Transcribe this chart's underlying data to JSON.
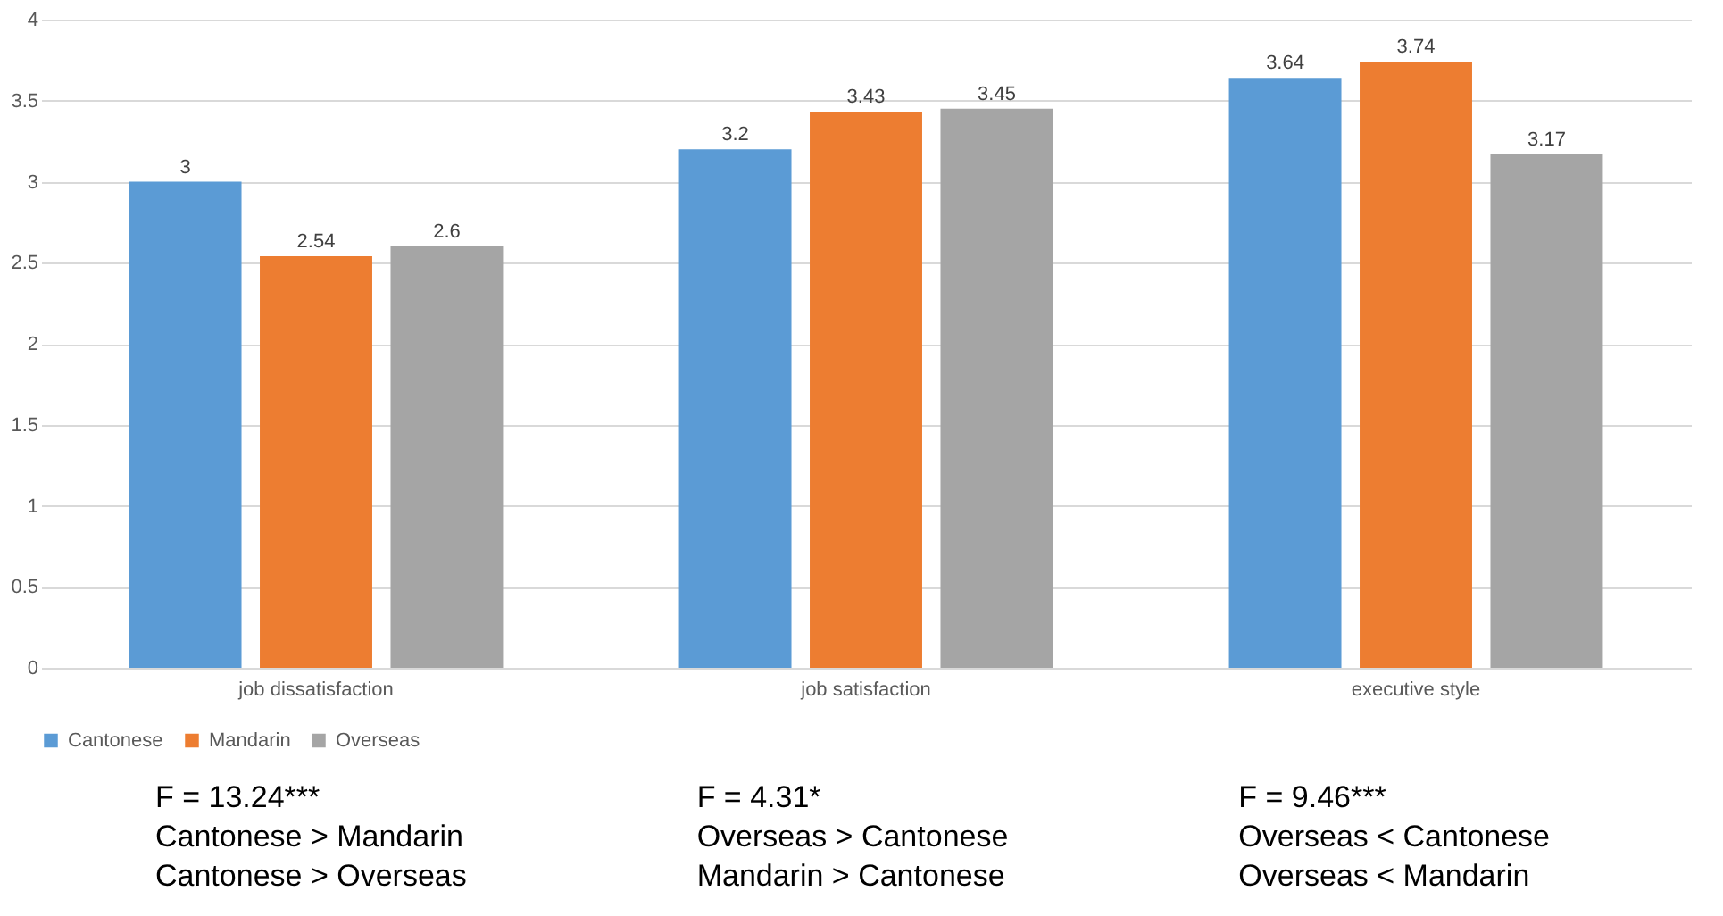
{
  "chart_data": {
    "type": "bar",
    "categories": [
      "job dissatisfaction",
      "job satisfaction",
      "executive style"
    ],
    "series": [
      {
        "name": "Cantonese",
        "color": "#5b9bd5",
        "values": [
          3,
          3.2,
          3.64
        ]
      },
      {
        "name": "Mandarin",
        "color": "#ed7d31",
        "values": [
          2.54,
          3.43,
          3.74
        ]
      },
      {
        "name": "Overseas",
        "color": "#a5a5a5",
        "values": [
          2.6,
          3.45,
          3.17
        ]
      }
    ],
    "ylim": [
      0,
      4
    ],
    "yticks": [
      0,
      0.5,
      1,
      1.5,
      2,
      2.5,
      3,
      3.5,
      4
    ],
    "grid": "y",
    "legend": "bottom",
    "data_labels": true,
    "annotations": [
      "F = 13.24***\nCantonese > Mandarin\nCantonese > Overseas",
      "F = 4.31*\nOverseas > Cantonese\nMandarin > Cantonese",
      "F = 9.46***\nOverseas < Cantonese\nOverseas < Mandarin"
    ]
  }
}
